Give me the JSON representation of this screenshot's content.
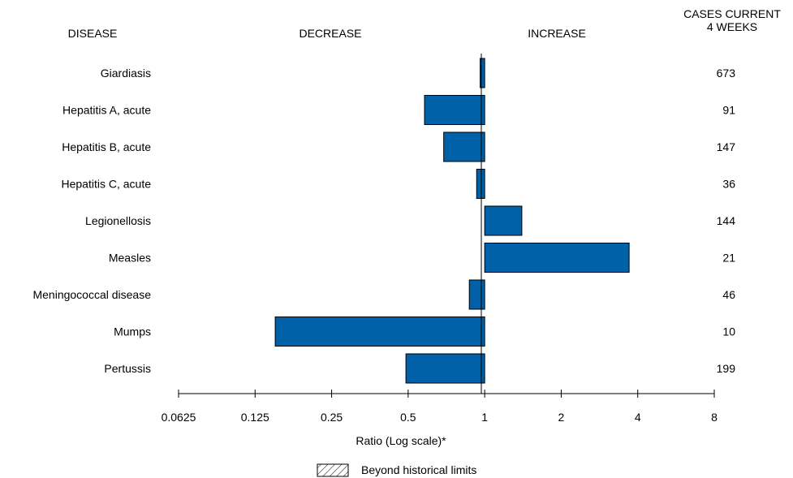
{
  "chart_data": {
    "type": "bar",
    "orientation": "horizontal",
    "headers": {
      "disease": "DISEASE",
      "decrease": "DECREASE",
      "increase": "INCREASE",
      "cases_line1": "CASES CURRENT",
      "cases_line2": "4 WEEKS"
    },
    "xlabel": "Ratio (Log scale)*",
    "x_scale": "log2",
    "xlim": [
      0.0625,
      8
    ],
    "reference_line": 1,
    "ticks": [
      {
        "value": 0.0625,
        "label": "0.0625"
      },
      {
        "value": 0.125,
        "label": "0.125"
      },
      {
        "value": 0.25,
        "label": "0.25"
      },
      {
        "value": 0.5,
        "label": "0.5"
      },
      {
        "value": 1,
        "label": "1"
      },
      {
        "value": 2,
        "label": "2"
      },
      {
        "value": 4,
        "label": "4"
      },
      {
        "value": 8,
        "label": "8"
      }
    ],
    "bar_color": "#0060a8",
    "categories": [
      "Giardiasis",
      "Hepatitis A, acute",
      "Hepatitis B, acute",
      "Hepatitis C, acute",
      "Legionellosis",
      "Measles",
      "Meningococcal disease",
      "Mumps",
      "Pertussis"
    ],
    "values": [
      0.96,
      0.58,
      0.69,
      0.93,
      1.4,
      3.7,
      0.87,
      0.15,
      0.49
    ],
    "cases": [
      "673",
      "91",
      "147",
      "36",
      "144",
      "21",
      "46",
      "10",
      "199"
    ],
    "legend": {
      "label": "Beyond historical limits",
      "placement": "bottom-center",
      "pattern": "diagonal-hatch"
    }
  }
}
